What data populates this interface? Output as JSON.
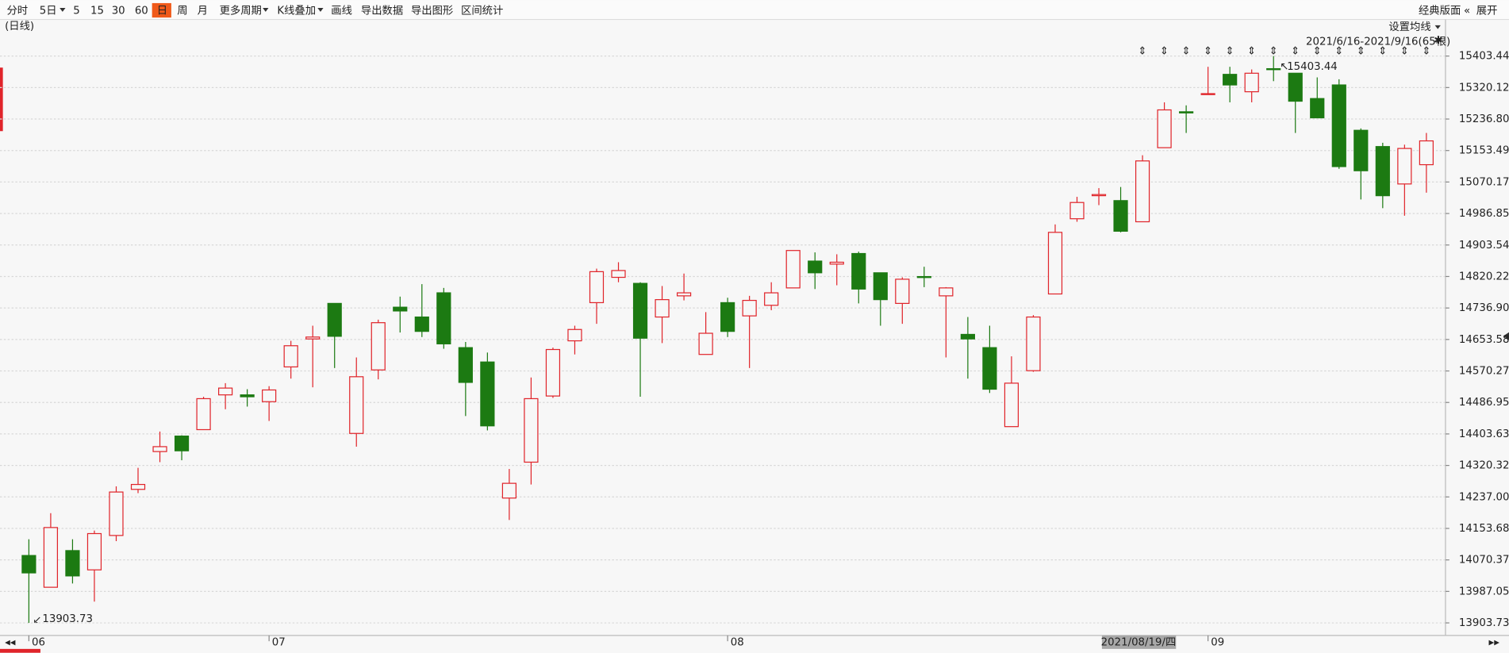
{
  "toolbar": {
    "items": [
      "分时",
      "5日",
      "5",
      "15",
      "30",
      "60",
      "日",
      "周",
      "月",
      "更多周期",
      "K线叠加",
      "画线",
      "导出数据",
      "导出图形",
      "区间统计"
    ],
    "right": [
      "经典版面",
      "展开"
    ]
  },
  "chart_data": {
    "type": "candlestick",
    "period_label": "(日线)",
    "ma_setting": "设置均线",
    "range_label": "2021/6/16-2021/9/16(65根)",
    "crosshair_label": "2021/08/19/四",
    "up_color": "#e0242a",
    "down_color": "#1c7a12",
    "grid": true,
    "categories": [
      "06",
      null,
      null,
      null,
      null,
      null,
      null,
      null,
      null,
      null,
      null,
      "07",
      null,
      null,
      null,
      null,
      null,
      null,
      null,
      null,
      null,
      null,
      null,
      null,
      null,
      null,
      null,
      null,
      null,
      null,
      null,
      null,
      "08",
      null,
      null,
      null,
      null,
      null,
      null,
      null,
      null,
      null,
      null,
      null,
      null,
      null,
      null,
      null,
      null,
      null,
      null,
      null,
      null,
      null,
      "09",
      null,
      null,
      null,
      null,
      null,
      null,
      null,
      null,
      null,
      null
    ],
    "open": [
      14082,
      13998,
      14095,
      14044,
      14135,
      14257,
      14357,
      14398,
      14415,
      14507,
      14507,
      14489,
      14581,
      14655,
      14749,
      14405,
      14573,
      14739,
      14713,
      14777,
      14632,
      14594,
      14234,
      14329,
      14504,
      14650,
      14751,
      14818,
      14802,
      14713,
      14769,
      14614,
      14751,
      14716,
      14744,
      14790,
      14861,
      14853,
      14881,
      14830,
      14749,
      14820,
      14769,
      14667,
      14632,
      14423,
      14571,
      14774,
      14973,
      15034,
      15021,
      14965,
      15161,
      15256,
      15302,
      15355,
      15309,
      15370,
      15358,
      15291,
      15327,
      15207,
      15164,
      15065,
      15116
    ],
    "high": [
      14125,
      14194,
      14125,
      14148,
      14265,
      14314,
      14410,
      14400,
      14502,
      14538,
      14522,
      14530,
      14650,
      14690,
      14749,
      14606,
      14706,
      14767,
      14800,
      14790,
      14647,
      14619,
      14311,
      14553,
      14632,
      14690,
      14841,
      14858,
      14805,
      14795,
      14828,
      14726,
      14764,
      14769,
      14805,
      14889,
      14884,
      14879,
      14886,
      14830,
      14818,
      14846,
      14792,
      14713,
      14690,
      14609,
      14718,
      14958,
      15031,
      15054,
      15057,
      15141,
      15281,
      15273,
      15375,
      15375,
      15368,
      15403.44,
      15358,
      15347,
      15342,
      15212,
      15174,
      15169,
      15200
    ],
    "low": [
      13903.73,
      13998,
      14008,
      13960,
      14120,
      14247,
      14329,
      14334,
      14415,
      14469,
      14476,
      14438,
      14550,
      14527,
      14578,
      14370,
      14548,
      14672,
      14660,
      14629,
      14451,
      14413,
      14176,
      14270,
      14499,
      14614,
      14695,
      14805,
      14502,
      14644,
      14757,
      14614,
      14660,
      14578,
      14731,
      14790,
      14787,
      14797,
      14749,
      14690,
      14695,
      14792,
      14606,
      14550,
      14512,
      14423,
      14568,
      14774,
      14965,
      15009,
      14937,
      14965,
      15161,
      15200,
      15302,
      15281,
      15281,
      15337,
      15200,
      15240,
      15105,
      15024,
      15001,
      14981,
      15042
    ],
    "close": [
      14036,
      14156,
      14028,
      14140,
      14250,
      14270,
      14370,
      14359,
      14497,
      14525,
      14502,
      14520,
      14637,
      14660,
      14662,
      14555,
      14698,
      14729,
      14675,
      14642,
      14540,
      14425,
      14273,
      14497,
      14627,
      14680,
      14833,
      14836,
      14657,
      14759,
      14777,
      14670,
      14675,
      14757,
      14777,
      14889,
      14830,
      14858,
      14787,
      14759,
      14813,
      14818,
      14790,
      14655,
      14522,
      14538,
      14713,
      14937,
      15016,
      15037,
      14940,
      15126,
      15261,
      15253,
      15304,
      15327,
      15358,
      15368,
      15284,
      15240,
      15111,
      15100,
      15034,
      15159,
      15179
    ],
    "ylim": [
      13870.5,
      15505.3
    ],
    "yticks": [
      15403.44,
      15320.12,
      {
        "value": 15236.8,
        "label": "15236.80"
      },
      15153.49,
      15070.17,
      14986.85,
      14903.54,
      14820.22,
      {
        "value": 14736.9,
        "label": "14736.90"
      },
      14653.58,
      14570.27,
      14486.95,
      14403.63,
      14320.32,
      {
        "value": 14237,
        "label": "14237.00"
      },
      14153.68,
      14070.37,
      13987.05,
      13903.73
    ]
  }
}
